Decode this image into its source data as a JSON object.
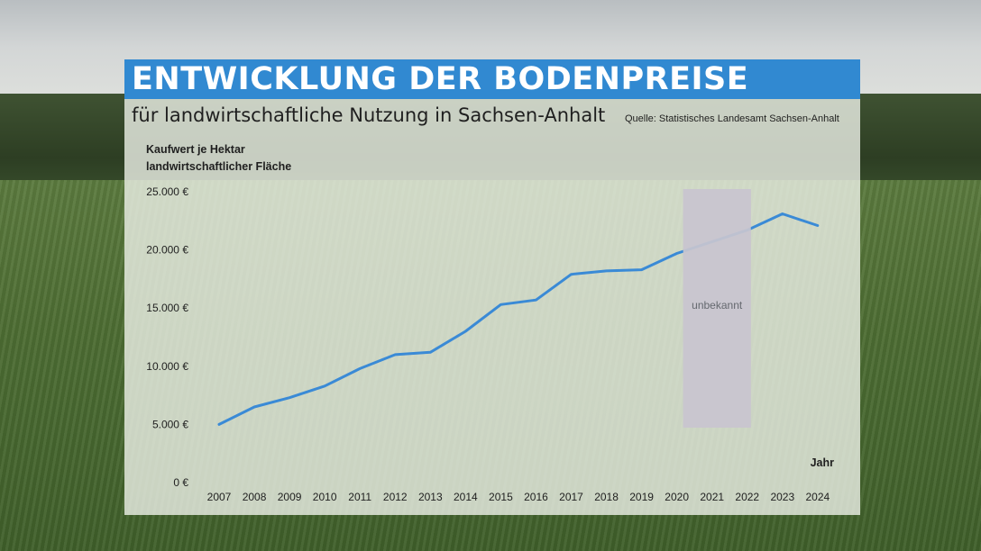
{
  "title": "ENTWICKLUNG DER BODENPREISE",
  "subtitle": "für landwirtschaftliche Nutzung in Sachsen-Anhalt",
  "source": "Quelle: Statistisches Landesamt Sachsen-Anhalt",
  "colors": {
    "title_bar": "#3189d1",
    "line": "#3a8ad6",
    "unknown_box": "#c9c6cf"
  },
  "chart_data": {
    "type": "line",
    "ylabel": [
      "Kaufwert je Hektar",
      "landwirtschaftlicher Fläche"
    ],
    "xlabel": "Jahr",
    "categories": [
      "2007",
      "2008",
      "2009",
      "2010",
      "2011",
      "2012",
      "2013",
      "2014",
      "2015",
      "2016",
      "2017",
      "2018",
      "2019",
      "2020",
      "2021",
      "2022",
      "2023",
      "2024"
    ],
    "y_ticks": [
      0,
      5000,
      10000,
      15000,
      20000,
      25000
    ],
    "y_tick_labels": [
      "0 €",
      "5.000 €",
      "10.000 €",
      "15.000 €",
      "20.000 €",
      "25.000 €"
    ],
    "ylim": [
      0,
      25000
    ],
    "grid": false,
    "series": [
      {
        "values": [
          5000,
          6500,
          7300,
          8300,
          9800,
          11000,
          11200,
          13000,
          15300,
          15700,
          17900,
          18200,
          18300,
          19700,
          null,
          21700,
          23100,
          22100
        ]
      }
    ],
    "annotations": [
      {
        "text": "unbekannt",
        "from": "2020",
        "to": "2022"
      }
    ]
  }
}
